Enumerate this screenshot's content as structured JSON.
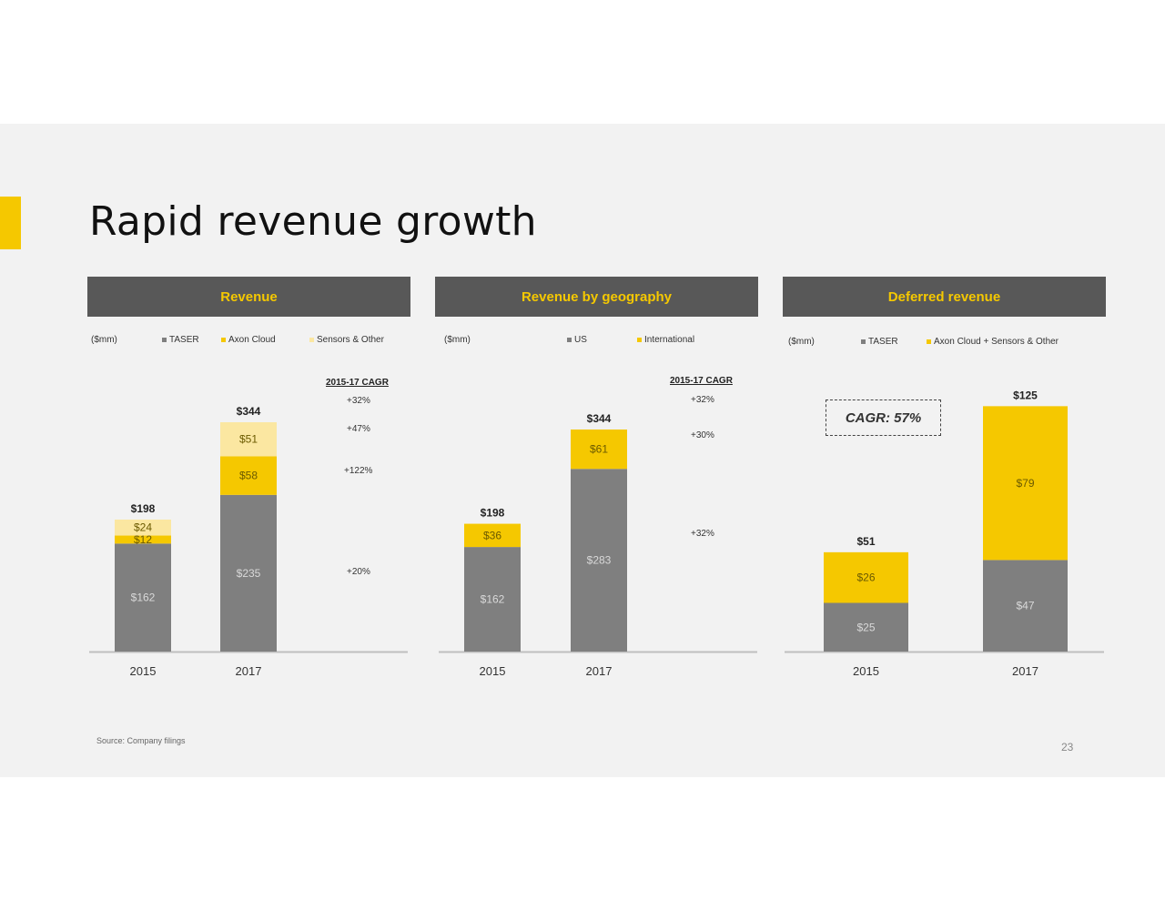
{
  "title": "Rapid revenue growth",
  "source": "Source: Company filings",
  "page_number": "23",
  "colors": {
    "accent": "#f5c800",
    "header_bg": "#585858",
    "gray": "#7f7f7f",
    "yellow": "#f5c800",
    "light_yellow": "#fbe7a1"
  },
  "panels": [
    {
      "header": "Revenue",
      "unit": "($mm)",
      "legend": [
        "TASER",
        "Axon Cloud",
        "Sensors & Other"
      ],
      "cagr_header": "2015-17 CAGR",
      "cagr_values": [
        "+32%",
        "+47%",
        "+122%",
        "+20%"
      ]
    },
    {
      "header": "Revenue by geography",
      "unit": "($mm)",
      "legend": [
        "US",
        "International"
      ],
      "cagr_header": "2015-17 CAGR",
      "cagr_values": [
        "+32%",
        "+30%",
        "+32%"
      ]
    },
    {
      "header": "Deferred revenue",
      "unit": "($mm)",
      "legend": [
        "TASER",
        "Axon Cloud + Sensors & Other"
      ],
      "cagr_box": "CAGR: 57%"
    }
  ],
  "chart_data": [
    {
      "type": "bar",
      "stacked": true,
      "title": "Revenue",
      "categories": [
        "2015",
        "2017"
      ],
      "series": [
        {
          "name": "TASER",
          "values": [
            162,
            235
          ],
          "labels": [
            "$162",
            "$235"
          ],
          "color": "#7f7f7f"
        },
        {
          "name": "Axon Cloud",
          "values": [
            12,
            58
          ],
          "labels": [
            "$12",
            "$58"
          ],
          "color": "#f5c800"
        },
        {
          "name": "Sensors & Other",
          "values": [
            24,
            51
          ],
          "labels": [
            "$24",
            "$51"
          ],
          "color": "#fbe7a1"
        }
      ],
      "totals": [
        "$198",
        "$344"
      ],
      "ylim": [
        0,
        344
      ]
    },
    {
      "type": "bar",
      "stacked": true,
      "title": "Revenue by geography",
      "categories": [
        "2015",
        "2017"
      ],
      "series": [
        {
          "name": "US",
          "values": [
            162,
            283
          ],
          "labels": [
            "$162",
            "$283"
          ],
          "color": "#7f7f7f"
        },
        {
          "name": "International",
          "values": [
            36,
            61
          ],
          "labels": [
            "$36",
            "$61"
          ],
          "color": "#f5c800"
        }
      ],
      "totals": [
        "$198",
        "$344"
      ],
      "ylim": [
        0,
        344
      ]
    },
    {
      "type": "bar",
      "stacked": true,
      "title": "Deferred revenue",
      "categories": [
        "2015",
        "2017"
      ],
      "series": [
        {
          "name": "TASER",
          "values": [
            25,
            47
          ],
          "labels": [
            "$25",
            "$47"
          ],
          "color": "#7f7f7f"
        },
        {
          "name": "Axon Cloud + Sensors & Other",
          "values": [
            26,
            79
          ],
          "labels": [
            "$26",
            "$79"
          ],
          "color": "#f5c800"
        }
      ],
      "totals": [
        "$51",
        "$125"
      ],
      "ylim": [
        0,
        125
      ]
    }
  ]
}
